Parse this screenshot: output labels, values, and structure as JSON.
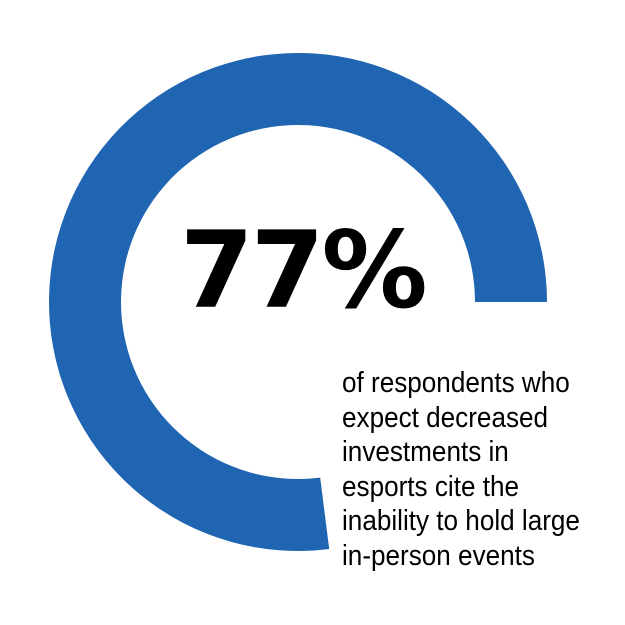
{
  "chart_data": {
    "type": "pie",
    "variant": "donut",
    "value_percent": 77,
    "label": "77%",
    "colors": {
      "arc": "#1f65b1",
      "text": "#000000",
      "background": "#ffffff"
    },
    "caption_lines": [
      "of respondents who",
      "expect decreased",
      "investments in",
      "esports cite the",
      "inability to hold large",
      "in-person events"
    ]
  }
}
